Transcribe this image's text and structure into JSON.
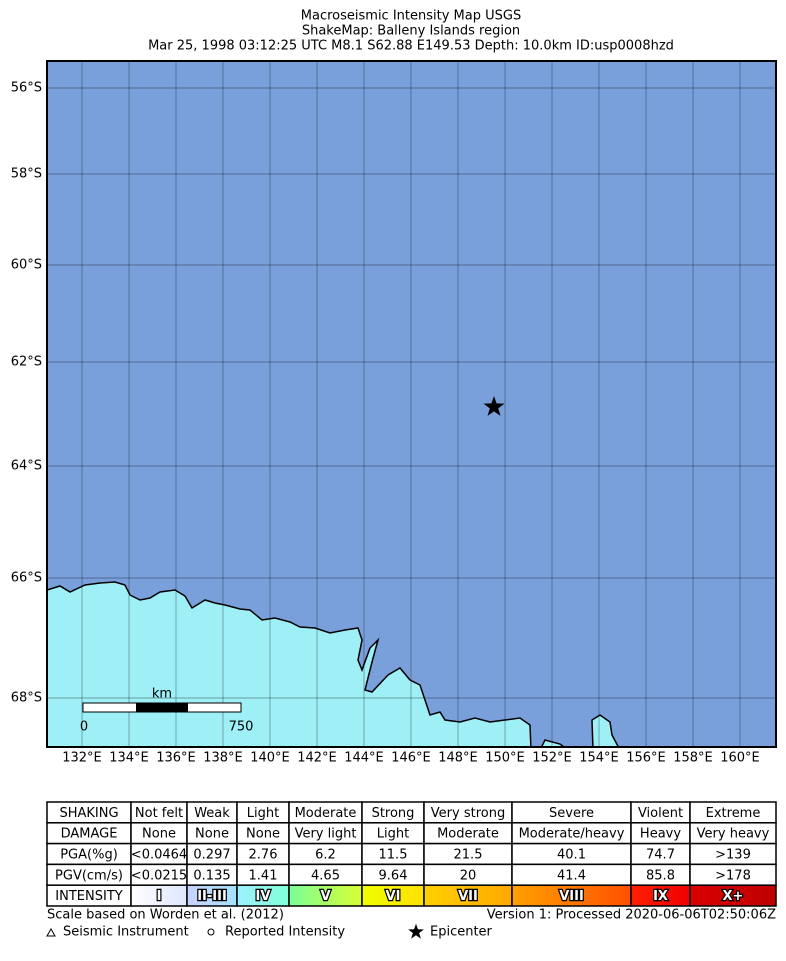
{
  "header": {
    "title": [
      "Macroseismic Intensity Map USGS",
      "ShakeMap: Balleny Islands region",
      "Mar 25, 1998 03:12:25 UTC M8.1 S62.88 E149.53 Depth: 10.0km ID:usp0008hzd"
    ]
  },
  "map": {
    "lat_labels": [
      "56°S",
      "58°S",
      "60°S",
      "62°S",
      "64°S",
      "66°S",
      "68°S"
    ],
    "lon_labels": [
      "132°E",
      "134°E",
      "136°E",
      "138°E",
      "140°E",
      "142°E",
      "144°E",
      "146°E",
      "148°E",
      "150°E",
      "152°E",
      "154°E",
      "156°E",
      "158°E",
      "160°E"
    ],
    "scale_bar": {
      "unit": "km",
      "labels": [
        "0",
        "750"
      ]
    }
  },
  "legend": {
    "rows": [
      [
        "SHAKING",
        "Not felt",
        "Weak",
        "Light",
        "Moderate",
        "Strong",
        "Very strong",
        "Severe",
        "Violent",
        "Extreme"
      ],
      [
        "DAMAGE",
        "None",
        "None",
        "None",
        "Very light",
        "Light",
        "Moderate",
        "Moderate/heavy",
        "Heavy",
        "Very heavy"
      ],
      [
        "PGA(%g)",
        "<0.0464",
        "0.297",
        "2.76",
        "6.2",
        "11.5",
        "21.5",
        "40.1",
        "74.7",
        ">139"
      ],
      [
        "PGV(cm/s)",
        "<0.0215",
        "0.135",
        "1.41",
        "4.65",
        "9.64",
        "20",
        "41.4",
        "85.8",
        ">178"
      ],
      [
        "INTENSITY",
        "I",
        "II-III",
        "IV",
        "V",
        "VI",
        "VII",
        "VIII",
        "IX",
        "X+"
      ]
    ]
  },
  "footer": {
    "scale_note": "Scale based on Worden et al. (2012)",
    "version": "Version 1: Processed 2020-06-06T02:50:06Z",
    "symbols": [
      "Seismic Instrument",
      "Reported Intensity",
      "Epicenter"
    ]
  }
}
